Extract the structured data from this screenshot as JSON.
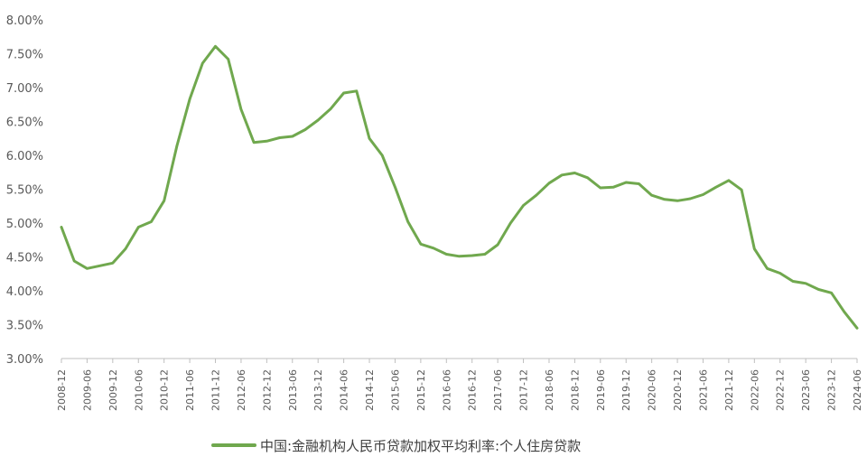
{
  "chart_data": {
    "type": "line",
    "title": "",
    "xlabel": "",
    "ylabel": "",
    "ylim": [
      3.0,
      8.0
    ],
    "y_ticks": [
      "3.00%",
      "3.50%",
      "4.00%",
      "4.50%",
      "5.00%",
      "5.50%",
      "6.00%",
      "6.50%",
      "7.00%",
      "7.50%",
      "8.00%"
    ],
    "x_ticks": [
      "2008-12",
      "2009-06",
      "2009-12",
      "2010-06",
      "2010-12",
      "2011-06",
      "2011-12",
      "2012-06",
      "2012-12",
      "2013-06",
      "2013-12",
      "2014-06",
      "2014-12",
      "2015-06",
      "2015-12",
      "2016-06",
      "2016-12",
      "2017-06",
      "2017-12",
      "2018-06",
      "2018-12",
      "2019-06",
      "2019-12",
      "2020-06",
      "2020-12",
      "2021-06",
      "2021-12",
      "2022-06",
      "2022-12",
      "2023-06",
      "2023-12",
      "2024-06"
    ],
    "grid": false,
    "legend_position": "bottom",
    "colors": {
      "series": "#70a84e",
      "axis": "#bfbfbf",
      "text": "#595959"
    },
    "x": [
      "2008-12",
      "2009-03",
      "2009-06",
      "2009-09",
      "2009-12",
      "2010-03",
      "2010-06",
      "2010-09",
      "2010-12",
      "2011-03",
      "2011-06",
      "2011-09",
      "2011-12",
      "2012-03",
      "2012-06",
      "2012-09",
      "2012-12",
      "2013-03",
      "2013-06",
      "2013-09",
      "2013-12",
      "2014-03",
      "2014-06",
      "2014-09",
      "2014-12",
      "2015-03",
      "2015-06",
      "2015-09",
      "2015-12",
      "2016-03",
      "2016-06",
      "2016-09",
      "2016-12",
      "2017-03",
      "2017-06",
      "2017-09",
      "2017-12",
      "2018-03",
      "2018-06",
      "2018-09",
      "2018-12",
      "2019-03",
      "2019-06",
      "2019-09",
      "2019-12",
      "2020-03",
      "2020-06",
      "2020-09",
      "2020-12",
      "2021-03",
      "2021-06",
      "2021-09",
      "2021-12",
      "2022-03",
      "2022-06",
      "2022-09",
      "2022-12",
      "2023-03",
      "2023-06",
      "2023-09",
      "2023-12",
      "2024-03",
      "2024-06"
    ],
    "series": [
      {
        "name": "中国:金融机构人民币贷款加权平均利率:个人住房贷款",
        "values": [
          4.94,
          4.44,
          4.33,
          4.37,
          4.41,
          4.62,
          4.94,
          5.02,
          5.33,
          6.14,
          6.83,
          7.36,
          7.61,
          7.42,
          6.68,
          6.19,
          6.21,
          6.26,
          6.28,
          6.38,
          6.52,
          6.69,
          6.92,
          6.95,
          6.25,
          6.0,
          5.53,
          5.02,
          4.69,
          4.63,
          4.54,
          4.51,
          4.52,
          4.54,
          4.68,
          5.0,
          5.26,
          5.41,
          5.59,
          5.71,
          5.74,
          5.67,
          5.52,
          5.53,
          5.6,
          5.58,
          5.41,
          5.35,
          5.33,
          5.36,
          5.42,
          5.53,
          5.63,
          5.49,
          4.62,
          4.33,
          4.26,
          4.14,
          4.11,
          4.02,
          3.97,
          3.69,
          3.45
        ]
      }
    ]
  }
}
